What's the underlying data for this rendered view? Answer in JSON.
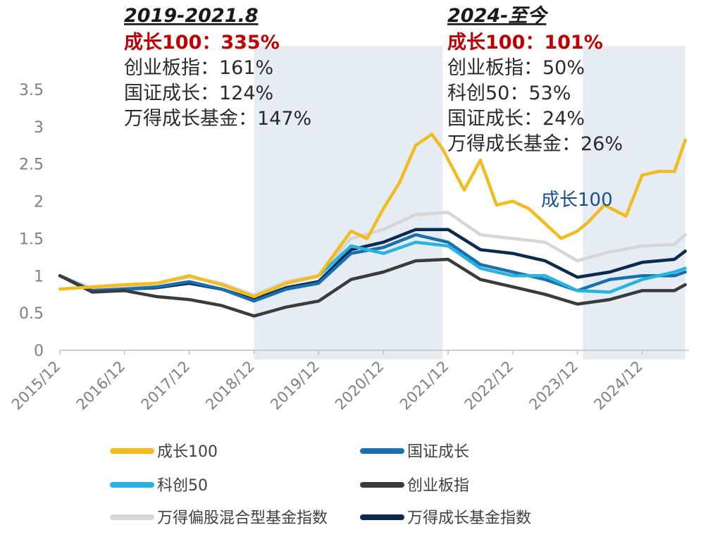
{
  "chart_data": {
    "type": "line",
    "title": "",
    "xlabel": "",
    "ylabel": "",
    "ylim": [
      0,
      3.5
    ],
    "yticks": [
      "0",
      "0.5",
      "1",
      "1.5",
      "2",
      "2.5",
      "3",
      "3.5"
    ],
    "xticks": [
      "2015/12",
      "2016/12",
      "2017/12",
      "2018/12",
      "2019/12",
      "2020/12",
      "2021/12",
      "2022/12",
      "2023/12",
      "2024/12"
    ],
    "grid": false,
    "legend_position": "bottom",
    "colors": {
      "成长100": "#f0bc1e",
      "国证成长": "#1a6fae",
      "科创50": "#28b4de",
      "创业板指": "#3b3b3b",
      "万得偏股混合型基金指数": "#d6d6d6",
      "万得成长基金指数": "#0c2a4e",
      "shade": "#e6ecf4",
      "highlight_text": "#c00000",
      "inline_label": "#1b4f8a"
    },
    "series": [
      {
        "name": "万得偏股混合型基金指数",
        "x": [
          "2015/12",
          "2016/06",
          "2016/12",
          "2017/06",
          "2017/12",
          "2018/06",
          "2018/12",
          "2019/06",
          "2019/12",
          "2020/06",
          "2020/12",
          "2021/06",
          "2021/12",
          "2022/06",
          "2022/12",
          "2023/06",
          "2023/12",
          "2024/06",
          "2024/12",
          "2025/06",
          "2025/08"
        ],
        "values": [
          1.0,
          0.83,
          0.86,
          0.9,
          0.98,
          0.9,
          0.74,
          0.92,
          1.0,
          1.5,
          1.62,
          1.82,
          1.85,
          1.55,
          1.5,
          1.45,
          1.2,
          1.32,
          1.4,
          1.42,
          1.55
        ]
      },
      {
        "name": "万得成长基金指数",
        "x": [
          "2015/12",
          "2016/06",
          "2016/12",
          "2017/06",
          "2017/12",
          "2018/06",
          "2018/12",
          "2019/06",
          "2019/12",
          "2020/06",
          "2020/12",
          "2021/06",
          "2021/12",
          "2022/06",
          "2022/12",
          "2023/06",
          "2023/12",
          "2024/06",
          "2024/12",
          "2025/06",
          "2025/08"
        ],
        "values": [
          1.0,
          0.8,
          0.82,
          0.84,
          0.9,
          0.82,
          0.68,
          0.84,
          0.92,
          1.35,
          1.45,
          1.62,
          1.62,
          1.35,
          1.3,
          1.2,
          0.98,
          1.05,
          1.18,
          1.22,
          1.33
        ]
      },
      {
        "name": "国证成长",
        "x": [
          "2015/12",
          "2016/06",
          "2016/12",
          "2017/06",
          "2017/12",
          "2018/06",
          "2018/12",
          "2019/06",
          "2019/12",
          "2020/06",
          "2020/12",
          "2021/06",
          "2021/12",
          "2022/06",
          "2022/12",
          "2023/06",
          "2023/12",
          "2024/06",
          "2024/12",
          "2025/06",
          "2025/08"
        ],
        "values": [
          1.0,
          0.8,
          0.82,
          0.85,
          0.92,
          0.82,
          0.66,
          0.82,
          0.9,
          1.3,
          1.38,
          1.55,
          1.45,
          1.15,
          1.05,
          0.95,
          0.8,
          0.95,
          1.0,
          1.0,
          1.05
        ]
      },
      {
        "name": "科创50",
        "x": [
          "2019/12",
          "2020/06",
          "2020/12",
          "2021/06",
          "2021/12",
          "2022/06",
          "2022/12",
          "2023/06",
          "2023/12",
          "2024/06",
          "2024/12",
          "2025/06",
          "2025/08"
        ],
        "values": [
          1.0,
          1.4,
          1.3,
          1.45,
          1.4,
          1.1,
          1.0,
          1.0,
          0.8,
          0.78,
          0.95,
          1.05,
          1.1
        ]
      },
      {
        "name": "创业板指",
        "x": [
          "2015/12",
          "2016/06",
          "2016/12",
          "2017/06",
          "2017/12",
          "2018/06",
          "2018/12",
          "2019/06",
          "2019/12",
          "2020/06",
          "2020/12",
          "2021/06",
          "2021/12",
          "2022/06",
          "2022/12",
          "2023/06",
          "2023/12",
          "2024/06",
          "2024/12",
          "2025/06",
          "2025/08"
        ],
        "values": [
          1.0,
          0.78,
          0.8,
          0.72,
          0.68,
          0.6,
          0.46,
          0.58,
          0.66,
          0.95,
          1.05,
          1.2,
          1.22,
          0.95,
          0.85,
          0.75,
          0.62,
          0.68,
          0.8,
          0.8,
          0.88
        ]
      },
      {
        "name": "成长100",
        "x": [
          "2015/12",
          "2016/06",
          "2016/12",
          "2017/06",
          "2017/12",
          "2018/06",
          "2018/12",
          "2019/06",
          "2019/12",
          "2020/06",
          "2020/09",
          "2020/12",
          "2021/03",
          "2021/06",
          "2021/09",
          "2021/11",
          "2022/03",
          "2022/06",
          "2022/09",
          "2022/12",
          "2023/03",
          "2023/06",
          "2023/09",
          "2023/12",
          "2024/02",
          "2024/05",
          "2024/09",
          "2024/12",
          "2025/03",
          "2025/06",
          "2025/08"
        ],
        "values": [
          0.82,
          0.85,
          0.88,
          0.9,
          1.0,
          0.88,
          0.72,
          0.9,
          1.0,
          1.6,
          1.5,
          1.9,
          2.25,
          2.75,
          2.9,
          2.7,
          2.15,
          2.55,
          1.95,
          2.0,
          1.9,
          1.7,
          1.5,
          1.6,
          1.72,
          1.95,
          1.8,
          2.35,
          2.4,
          2.4,
          2.82
        ]
      }
    ],
    "shaded_periods": [
      {
        "from": "2018/12",
        "to": "2021/11"
      },
      {
        "from": "2024/01",
        "to": "2025/08"
      }
    ],
    "inline_label": "成长100",
    "annotations": [
      {
        "heading": "2019-2021.8",
        "lines": [
          {
            "text": "成长100：335%",
            "highlight": true
          },
          {
            "text": "创业板指：161%",
            "highlight": false
          },
          {
            "text": "国证成长：124%",
            "highlight": false
          },
          {
            "text": "万得成长基金：147%",
            "highlight": false
          }
        ]
      },
      {
        "heading": "2024-至今",
        "lines": [
          {
            "text": "成长100：101%",
            "highlight": true
          },
          {
            "text": "创业板指：50%",
            "highlight": false
          },
          {
            "text": "科创50：53%",
            "highlight": false
          },
          {
            "text": "国证成长：24%",
            "highlight": false
          },
          {
            "text": "万得成长基金：26%",
            "highlight": false
          }
        ]
      }
    ],
    "legend": [
      {
        "label": "成长100",
        "color": "#f0bc1e"
      },
      {
        "label": "国证成长",
        "color": "#1a6fae"
      },
      {
        "label": "科创50",
        "color": "#28b4de"
      },
      {
        "label": "创业板指",
        "color": "#3b3b3b"
      },
      {
        "label": "万得偏股混合型基金指数",
        "color": "#d6d6d6"
      },
      {
        "label": "万得成长基金指数",
        "color": "#0c2a4e"
      }
    ]
  }
}
